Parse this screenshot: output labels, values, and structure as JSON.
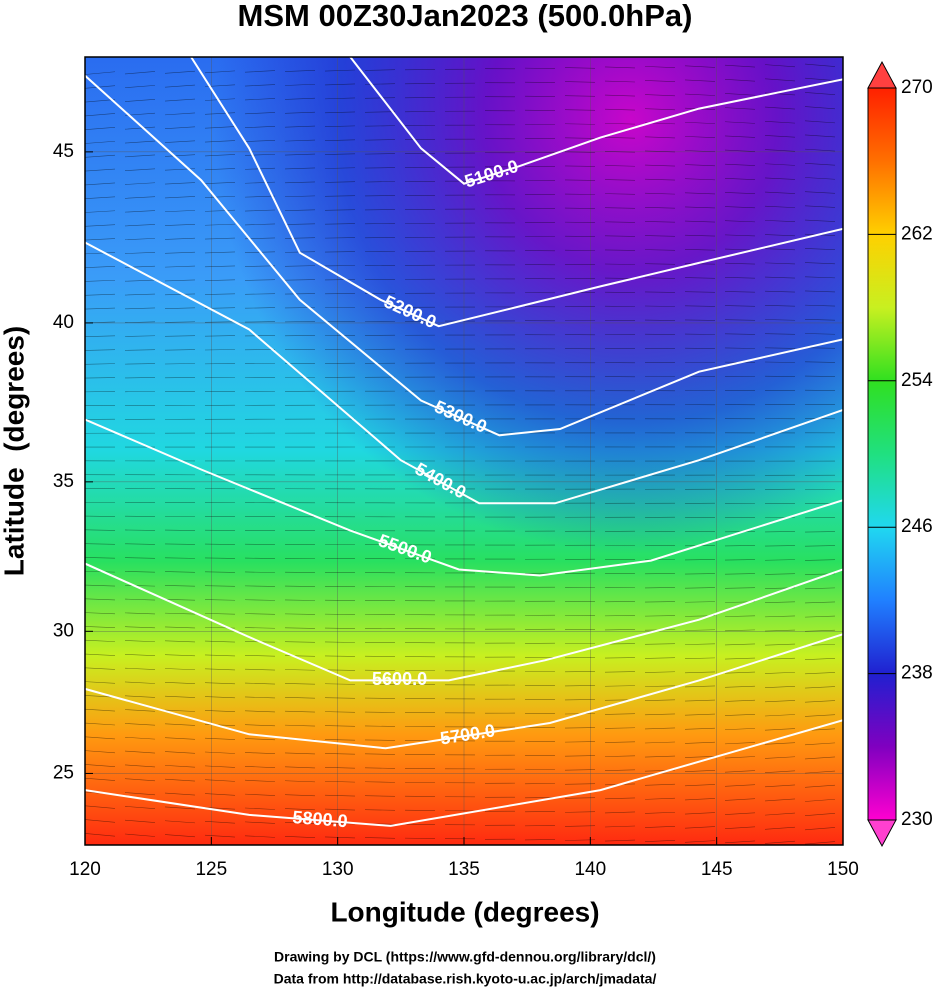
{
  "chart_data": {
    "type": "contour_map",
    "title": "MSM 00Z30Jan2023 (500.0hPa)",
    "xlabel": "Longitude (degrees)",
    "ylabel": "Latitude  (degrees)",
    "projection": "mercator",
    "grid": true,
    "xlim": [
      120,
      150
    ],
    "ylim": [
      22.4,
      47.6
    ],
    "xticks": [
      120,
      125,
      130,
      135,
      140,
      145,
      150
    ],
    "yticks": [
      25,
      30,
      35,
      40,
      45
    ],
    "contour_color": "#ffffff",
    "contours": [
      {
        "value": 5100,
        "value_label": "5100.0",
        "x": [
          130.5,
          133.3,
          135.0,
          137.2,
          140.4,
          144.3,
          150
        ],
        "y": [
          47.6,
          45.1,
          44.1,
          44.6,
          45.4,
          46.2,
          47.0
        ]
      },
      {
        "value": 5200,
        "value_label": "5200.0",
        "x": [
          124.2,
          126.5,
          128.5,
          131.7,
          134.0,
          137.2,
          140.4,
          144.3,
          150
        ],
        "y": [
          47.6,
          45.1,
          42.1,
          40.7,
          39.9,
          40.5,
          41.1,
          41.8,
          42.8
        ]
      },
      {
        "value": 5300,
        "value_label": "5300.0",
        "x": [
          120,
          124.6,
          128.5,
          133.3,
          136.4,
          138.8,
          144.3,
          150
        ],
        "y": [
          47.1,
          44.2,
          40.7,
          37.6,
          36.5,
          36.7,
          38.5,
          39.5
        ]
      },
      {
        "value": 5400,
        "value_label": "5400.0",
        "x": [
          120,
          126.5,
          132.5,
          135.6,
          138.6,
          144.3,
          150
        ],
        "y": [
          42.4,
          39.8,
          35.7,
          34.3,
          34.3,
          35.7,
          37.3
        ]
      },
      {
        "value": 5500,
        "value_label": "5500.0",
        "x": [
          120,
          124.6,
          130.5,
          134.8,
          138.0,
          142.4,
          150
        ],
        "y": [
          37.0,
          35.4,
          33.4,
          32.1,
          31.9,
          32.4,
          34.4
        ]
      },
      {
        "value": 5600,
        "value_label": "5600.0",
        "x": [
          120,
          126.5,
          130.5,
          134.4,
          138.2,
          144.3,
          150
        ],
        "y": [
          32.3,
          29.8,
          28.3,
          28.3,
          29.0,
          30.4,
          32.1
        ]
      },
      {
        "value": 5700,
        "value_label": "5700.0",
        "x": [
          120,
          126.5,
          131.9,
          138.4,
          144.3,
          150
        ],
        "y": [
          28.0,
          26.4,
          25.9,
          26.8,
          28.3,
          29.9
        ]
      },
      {
        "value": 5800,
        "value_label": "5800.0",
        "x": [
          120,
          126.5,
          132.1,
          140.4,
          150
        ],
        "y": [
          24.4,
          23.5,
          23.1,
          24.4,
          26.9
        ]
      }
    ],
    "colorbar": {
      "lim": [
        230,
        270
      ],
      "ticks": [
        230,
        238,
        246,
        254,
        262,
        270
      ],
      "colors": [
        "#ff00d0",
        "#8000c0",
        "#2020d0",
        "#2080ff",
        "#20d8f0",
        "#20e080",
        "#30e020",
        "#c8f020",
        "#ffd000",
        "#ff7000",
        "#ff2000"
      ]
    }
  },
  "footer": {
    "credit": "Drawing by DCL (https://www.gfd-dennou.org/library/dcl/)",
    "source": "Data from http://database.rish.kyoto-u.ac.jp/arch/jmadata/"
  }
}
